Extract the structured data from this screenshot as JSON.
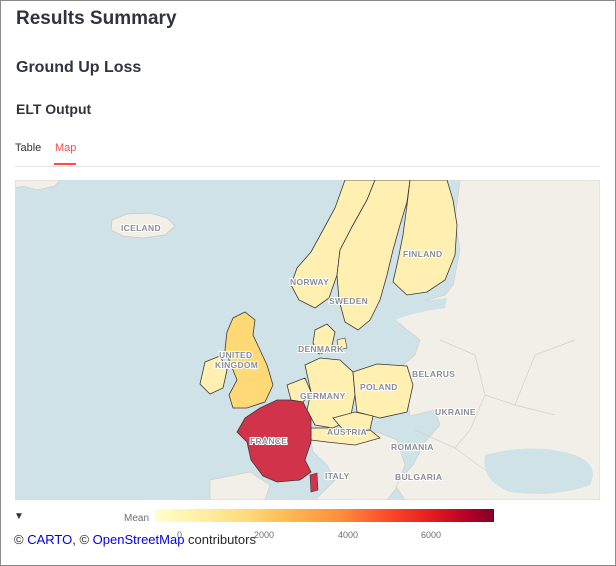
{
  "page": {
    "title": "Results Summary",
    "section": "Ground Up Loss",
    "subsection": "ELT Output"
  },
  "tabs": [
    {
      "label": "Table",
      "active": false
    },
    {
      "label": "Map",
      "active": true
    }
  ],
  "map": {
    "country_labels": {
      "iceland": "ICELAND",
      "norway": "NORWAY",
      "sweden": "SWEDEN",
      "finland": "FINLAND",
      "denmark": "DENMARK",
      "united_kingdom_1": "UNITED",
      "united_kingdom_2": "KINGDOM",
      "germany": "GERMANY",
      "poland": "POLAND",
      "belarus": "BELARUS",
      "ukraine": "UKRAINE",
      "france": "FRANCE",
      "austria": "AUSTRIA",
      "romania": "ROMANIA",
      "bulgaria": "BULGARIA",
      "italy": "ITALY"
    },
    "highlighted_countries": [
      "Iceland",
      "Norway",
      "Sweden",
      "Finland",
      "Denmark",
      "United Kingdom",
      "Ireland",
      "Germany",
      "Netherlands",
      "Belgium",
      "Poland",
      "Czechia",
      "Austria",
      "Switzerland",
      "France"
    ],
    "colors": {
      "sea": "#cfe2e7",
      "land": "#f2efe9",
      "low": "#ffefb0",
      "mid": "#fed976",
      "france": "#d0334a",
      "border": "#3a3a3a"
    }
  },
  "legend": {
    "toggle": "▼",
    "title": "Mean",
    "ticks": [
      "0",
      "2000",
      "4000",
      "6000"
    ]
  },
  "attribution": {
    "prefix": "© ",
    "carto": "CARTO",
    "middle": ", © ",
    "osm": "OpenStreetMap",
    "suffix": " contributors"
  }
}
